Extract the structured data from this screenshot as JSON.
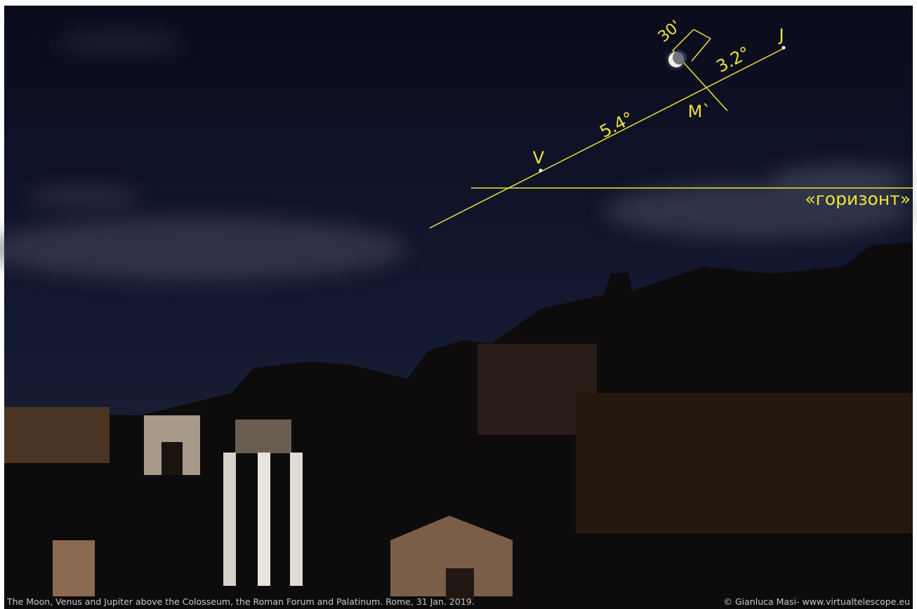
{
  "annotations": {
    "moon_size": "30'",
    "moon_jupiter": "3.2°",
    "jupiter": "J",
    "moon_projection": "M`",
    "venus_moon": "5.4°",
    "venus": "V",
    "horizon": "«горизонт»"
  },
  "caption": "The Moon, Venus and Jupiter above the Colosseum, the Roman Forum and Palatinum. Rome, 31 Jan. 2019.",
  "credit": "© Gianluca Masi- www.virtualtelescope.eu"
}
